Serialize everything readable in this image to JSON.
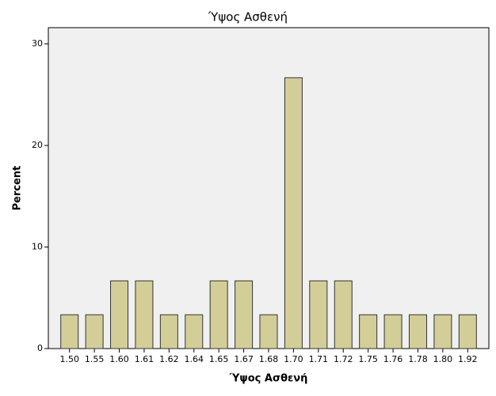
{
  "chart_data": {
    "type": "bar",
    "title": "Ύψος Ασθενή",
    "x_label": "Ύψος Ασθενή",
    "y_label": "Percent",
    "categories": [
      "1.50",
      "1.55",
      "1.60",
      "1.61",
      "1.62",
      "1.64",
      "1.65",
      "1.67",
      "1.68",
      "1.70",
      "1.71",
      "1.72",
      "1.75",
      "1.76",
      "1.78",
      "1.80",
      "1.92"
    ],
    "values": [
      3.33,
      3.33,
      6.67,
      6.67,
      3.33,
      3.33,
      6.67,
      6.67,
      3.33,
      26.67,
      6.67,
      6.67,
      3.33,
      3.33,
      3.33,
      3.33,
      3.33
    ],
    "color": "#d3ce97",
    "ylim": [
      0,
      31.6
    ],
    "yticks": [
      0,
      10,
      20,
      30
    ]
  }
}
